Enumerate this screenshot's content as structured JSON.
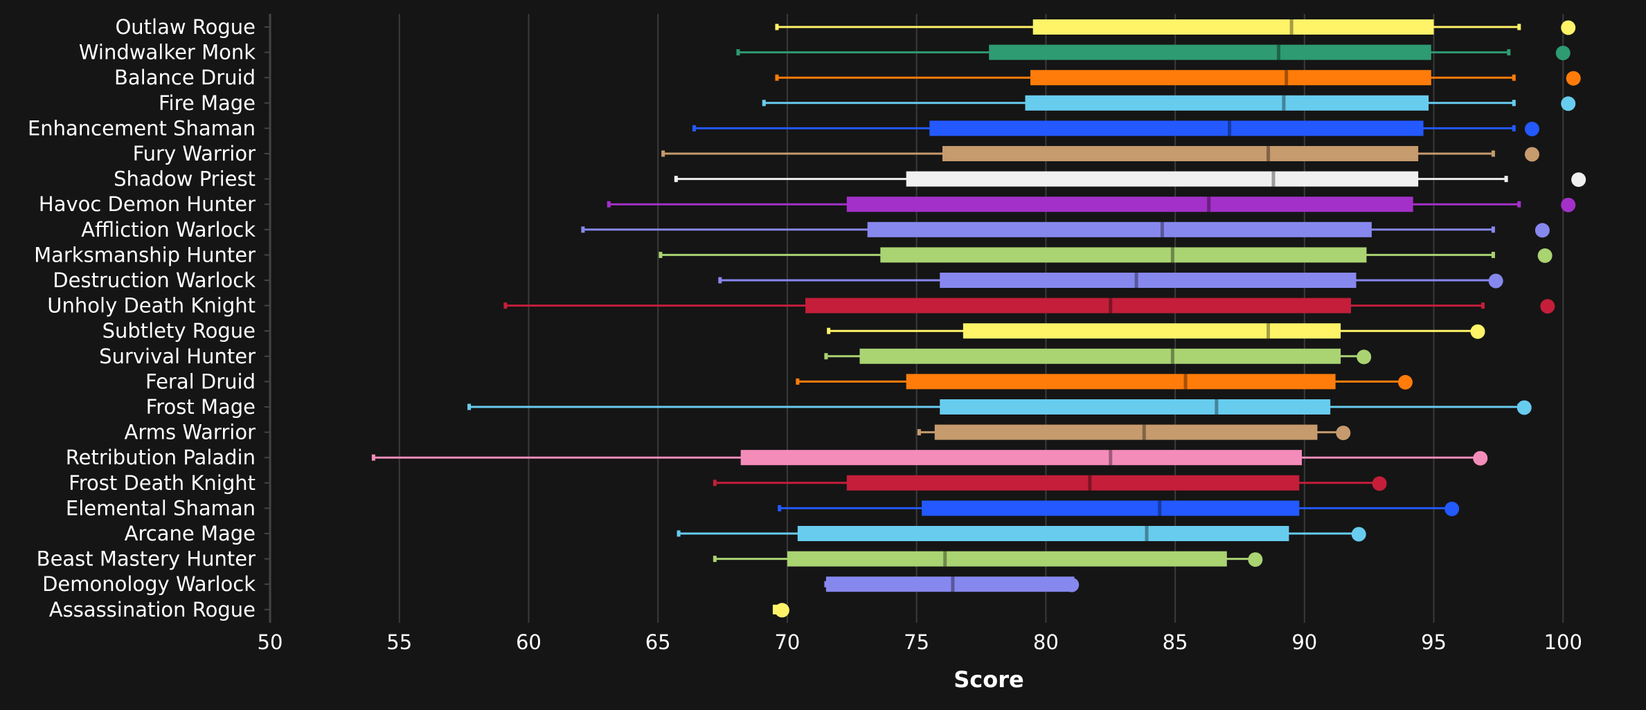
{
  "chart_data": {
    "type": "boxplot",
    "xlabel": "Score",
    "xlim": [
      50,
      101.6
    ],
    "x_ticks": [
      50,
      55,
      60,
      65,
      70,
      75,
      80,
      85,
      90,
      95,
      100
    ],
    "x_tick_labels": [
      "50",
      "55",
      "60",
      "65",
      "70",
      "75",
      "80",
      "85",
      "90",
      "95",
      "100"
    ],
    "grid": true,
    "colors": {
      "background": "#151515",
      "grid": "#3a3a3a",
      "axis": "#444444",
      "text": "#ffffff"
    },
    "categories": [
      "Outlaw Rogue",
      "Windwalker Monk",
      "Balance Druid",
      "Fire Mage",
      "Enhancement Shaman",
      "Fury Warrior",
      "Shadow Priest",
      "Havoc Demon Hunter",
      "Affliction Warlock",
      "Marksmanship Hunter",
      "Destruction Warlock",
      "Unholy Death Knight",
      "Subtlety Rogue",
      "Survival Hunter",
      "Feral Druid",
      "Frost Mage",
      "Arms Warrior",
      "Retribution Paladin",
      "Frost Death Knight",
      "Elemental Shaman",
      "Arcane Mage",
      "Beast Mastery Hunter",
      "Demonology Warlock",
      "Assassination Rogue"
    ],
    "series": [
      {
        "color": "#FFF468",
        "min": 69.6,
        "q1": 79.5,
        "median": 89.5,
        "q3": 95.0,
        "max": 98.3,
        "top": 100.2
      },
      {
        "color": "#2E9B72",
        "min": 68.1,
        "q1": 77.8,
        "median": 89.0,
        "q3": 94.9,
        "max": 97.9,
        "top": 100.0
      },
      {
        "color": "#FF7C0A",
        "min": 69.6,
        "q1": 79.4,
        "median": 89.3,
        "q3": 94.9,
        "max": 98.1,
        "top": 100.4
      },
      {
        "color": "#68CCEF",
        "min": 69.1,
        "q1": 79.2,
        "median": 89.2,
        "q3": 94.8,
        "max": 98.1,
        "top": 100.2
      },
      {
        "color": "#2359FF",
        "min": 66.4,
        "q1": 75.5,
        "median": 87.1,
        "q3": 94.6,
        "max": 98.1,
        "top": 98.8
      },
      {
        "color": "#C69B6D",
        "min": 65.2,
        "q1": 76.0,
        "median": 88.6,
        "q3": 94.4,
        "max": 97.3,
        "top": 98.8
      },
      {
        "color": "#F0F0F0",
        "min": 65.7,
        "q1": 74.6,
        "median": 88.8,
        "q3": 94.4,
        "max": 97.8,
        "top": 100.6
      },
      {
        "color": "#A330C9",
        "min": 63.1,
        "q1": 72.3,
        "median": 86.3,
        "q3": 94.2,
        "max": 98.3,
        "top": 100.2
      },
      {
        "color": "#8788EE",
        "min": 62.1,
        "q1": 73.1,
        "median": 84.5,
        "q3": 92.6,
        "max": 97.3,
        "top": 99.2
      },
      {
        "color": "#AAD372",
        "min": 65.1,
        "q1": 73.6,
        "median": 84.9,
        "q3": 92.4,
        "max": 97.3,
        "top": 99.3
      },
      {
        "color": "#8788EE",
        "min": 67.4,
        "q1": 75.9,
        "median": 83.5,
        "q3": 92.0,
        "max": 97.3,
        "top": 97.4
      },
      {
        "color": "#C41E3A",
        "min": 59.1,
        "q1": 70.7,
        "median": 82.5,
        "q3": 91.8,
        "max": 96.9,
        "top": 99.4
      },
      {
        "color": "#FFF468",
        "min": 71.6,
        "q1": 76.8,
        "median": 88.6,
        "q3": 91.4,
        "max": 96.6,
        "top": 96.7
      },
      {
        "color": "#AAD372",
        "min": 71.5,
        "q1": 72.8,
        "median": 84.9,
        "q3": 91.4,
        "max": 92.3,
        "top": 92.3
      },
      {
        "color": "#FF7C0A",
        "min": 70.4,
        "q1": 74.6,
        "median": 85.4,
        "q3": 91.2,
        "max": 93.9,
        "top": 93.9
      },
      {
        "color": "#68CCEF",
        "min": 57.7,
        "q1": 75.9,
        "median": 86.6,
        "q3": 91.0,
        "max": 98.3,
        "top": 98.5
      },
      {
        "color": "#C69B6D",
        "min": 75.1,
        "q1": 75.7,
        "median": 83.8,
        "q3": 90.5,
        "max": 91.5,
        "top": 91.5
      },
      {
        "color": "#F48CBA",
        "min": 54.0,
        "q1": 68.2,
        "median": 82.5,
        "q3": 89.9,
        "max": 96.8,
        "top": 96.8
      },
      {
        "color": "#C41E3A",
        "min": 67.2,
        "q1": 72.3,
        "median": 81.7,
        "q3": 89.8,
        "max": 92.9,
        "top": 92.9
      },
      {
        "color": "#2359FF",
        "min": 69.7,
        "q1": 75.2,
        "median": 84.4,
        "q3": 89.8,
        "max": 95.6,
        "top": 95.7
      },
      {
        "color": "#68CCEF",
        "min": 65.8,
        "q1": 70.4,
        "median": 83.9,
        "q3": 89.4,
        "max": 92.1,
        "top": 92.1
      },
      {
        "color": "#AAD372",
        "min": 67.2,
        "q1": 70.0,
        "median": 76.1,
        "q3": 87.0,
        "max": 88.1,
        "top": 88.1
      },
      {
        "color": "#8788EE",
        "min": 71.5,
        "q1": 71.5,
        "median": 76.4,
        "q3": 81.1,
        "max": 81.1,
        "top": 81.0
      },
      {
        "color": "#FFF468",
        "min": 69.6,
        "q1": 69.6,
        "median": 69.6,
        "q3": 69.6,
        "max": 69.6,
        "top": 69.8
      }
    ]
  }
}
